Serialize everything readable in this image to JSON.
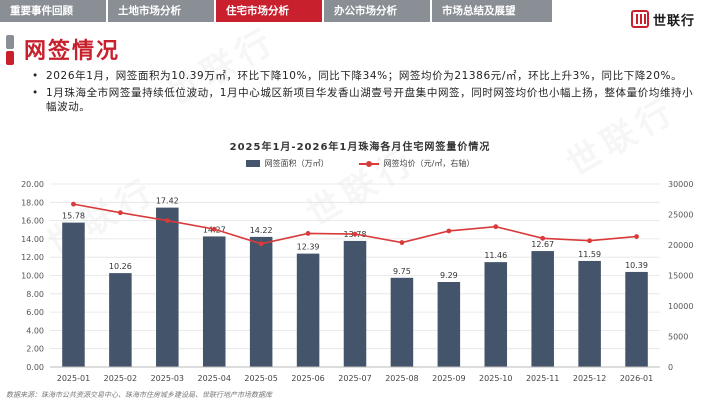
{
  "nav": {
    "tabs": [
      {
        "label": "重要事件回顾",
        "active": false
      },
      {
        "label": "土地市场分析",
        "active": false
      },
      {
        "label": "住宅市场分析",
        "active": true
      },
      {
        "label": "办公市场分析",
        "active": false
      },
      {
        "label": "市场总结及展望",
        "active": false
      }
    ]
  },
  "brand": {
    "name": "世联行"
  },
  "page_title": "网签情况",
  "bullets": [
    "2026年1月，网签面积为10.39万㎡，环比下降10%，同比下降34%；网签均价为21386元/㎡，环比上升3%，同比下降20%。",
    "1月珠海全市网签量持续低位波动，1月中心城区新项目华发香山湖壹号开盘集中网签，同时网签均价也小幅上扬，整体量价均维持小幅波动。"
  ],
  "source": "数据来源：珠海市公共资源交易中心、珠海市住房城乡建设局、世联行地产市场数据库",
  "colors": {
    "accent": "#c8202d",
    "bar": "#44546a",
    "line": "#d93a3a",
    "nav_gray": "#8a8f96"
  },
  "chart_data": {
    "type": "bar",
    "title": "2025年1月-2026年1月珠海各月住宅网签量价情况",
    "categories": [
      "2025-01",
      "2025-02",
      "2025-03",
      "2025-04",
      "2025-05",
      "2025-06",
      "2025-07",
      "2025-08",
      "2025-09",
      "2025-10",
      "2025-11",
      "2025-12",
      "2026-01"
    ],
    "series": [
      {
        "name": "网签面积（万㎡）",
        "type": "bar",
        "axis": "left",
        "values": [
          15.78,
          10.26,
          17.42,
          14.27,
          14.22,
          12.39,
          13.78,
          9.75,
          9.29,
          11.46,
          12.67,
          11.59,
          10.39
        ],
        "value_labels": [
          "15.78",
          "10.26",
          "17.42",
          "14.27",
          "14.22",
          "12.39",
          "13.78",
          "9.75",
          "9.29",
          "11.46",
          "12.67",
          "11.59",
          "10.39"
        ]
      },
      {
        "name": "网签均价（元/㎡，右轴）",
        "type": "line",
        "axis": "right",
        "values": [
          26700,
          25300,
          24000,
          22600,
          20200,
          21900,
          21800,
          20400,
          22300,
          23000,
          21100,
          20700,
          21386
        ]
      }
    ],
    "ylim_left": [
      0,
      20
    ],
    "yticks_left": [
      "0.00",
      "2.00",
      "4.00",
      "6.00",
      "8.00",
      "10.00",
      "12.00",
      "14.00",
      "16.00",
      "18.00",
      "20.00"
    ],
    "ylim_right": [
      0,
      30000
    ],
    "yticks_right": [
      "0",
      "5000",
      "10000",
      "15000",
      "20000",
      "25000",
      "30000"
    ],
    "grid": true,
    "legend": "top-center"
  }
}
